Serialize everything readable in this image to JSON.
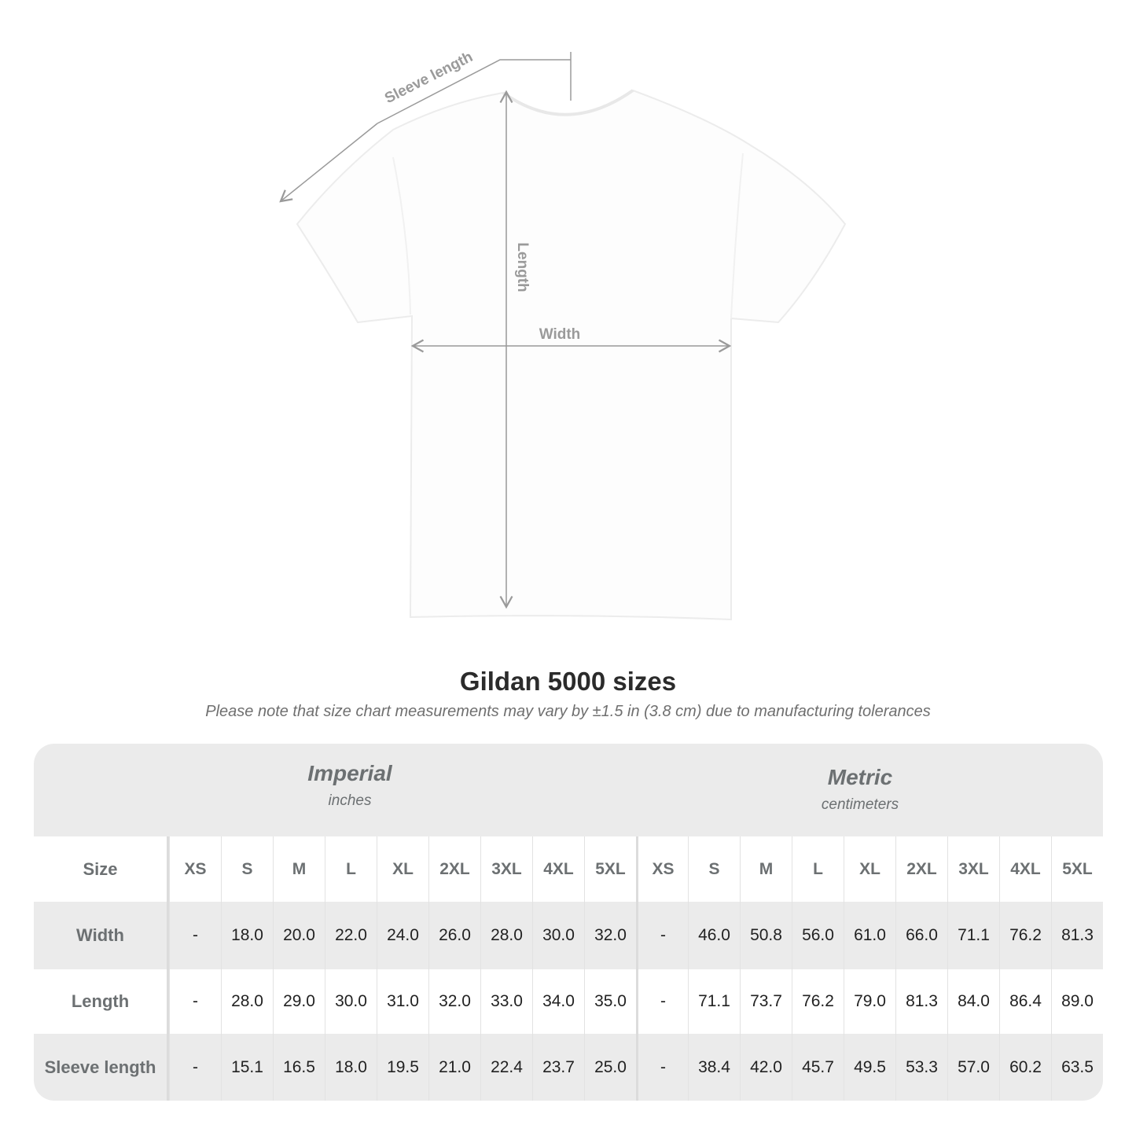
{
  "diagram": {
    "labels": {
      "sleeve": "Sleeve length",
      "length": "Length",
      "width": "Width"
    }
  },
  "title": "Gildan 5000 sizes",
  "note": "Please note that size chart measurements may vary by ±1.5 in (3.8 cm) due to manufacturing tolerances",
  "imperial": {
    "name": "Imperial",
    "unit": "inches"
  },
  "metric": {
    "name": "Metric",
    "unit": "centimeters"
  },
  "size_label": "Size",
  "sizes": [
    "XS",
    "S",
    "M",
    "L",
    "XL",
    "2XL",
    "3XL",
    "4XL",
    "5XL"
  ],
  "rows": [
    {
      "label": "Width",
      "imperial": [
        "-",
        "18.0",
        "20.0",
        "22.0",
        "24.0",
        "26.0",
        "28.0",
        "30.0",
        "32.0"
      ],
      "metric": [
        "-",
        "46.0",
        "50.8",
        "56.0",
        "61.0",
        "66.0",
        "71.1",
        "76.2",
        "81.3"
      ]
    },
    {
      "label": "Length",
      "imperial": [
        "-",
        "28.0",
        "29.0",
        "30.0",
        "31.0",
        "32.0",
        "33.0",
        "34.0",
        "35.0"
      ],
      "metric": [
        "-",
        "71.1",
        "73.7",
        "76.2",
        "79.0",
        "81.3",
        "84.0",
        "86.4",
        "89.0"
      ]
    },
    {
      "label": "Sleeve length",
      "imperial": [
        "-",
        "15.1",
        "16.5",
        "18.0",
        "19.5",
        "21.0",
        "22.4",
        "23.7",
        "25.0"
      ],
      "metric": [
        "-",
        "38.4",
        "42.0",
        "45.7",
        "49.5",
        "53.3",
        "57.0",
        "60.2",
        "63.5"
      ]
    }
  ]
}
